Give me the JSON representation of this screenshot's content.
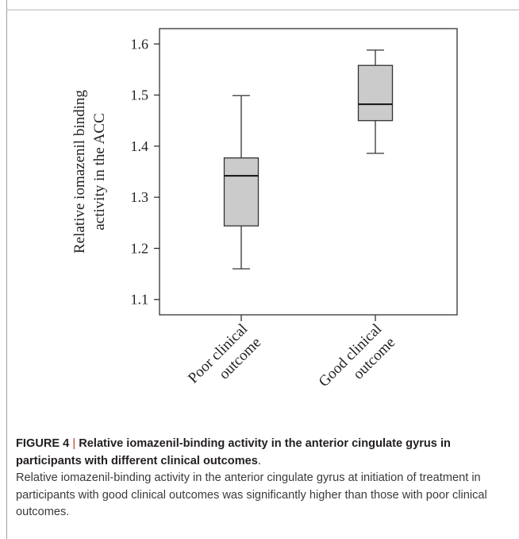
{
  "chart_data": {
    "type": "box",
    "ylabel_line1": "Relative iomazenil binding",
    "ylabel_line2": "activity in the ACC",
    "ylim": [
      1.07,
      1.63
    ],
    "yticks": [
      "1.1",
      "1.2",
      "1.3",
      "1.4",
      "1.5",
      "1.6"
    ],
    "ytick_values": [
      1.1,
      1.2,
      1.3,
      1.4,
      1.5,
      1.6
    ],
    "groups": [
      {
        "label_line1": "Poor clinical",
        "label_line2": "outcome",
        "min": 1.16,
        "q1": 1.244,
        "median": 1.342,
        "q3": 1.377,
        "max": 1.499
      },
      {
        "label_line1": "Good clinical",
        "label_line2": "outcome",
        "min": 1.386,
        "q1": 1.45,
        "median": 1.482,
        "q3": 1.558,
        "max": 1.588
      }
    ],
    "box_fill": "#cbcbcb"
  },
  "caption": {
    "figure_label": "FIGURE 4",
    "separator": "|",
    "title": "Relative iomazenil-binding activity in the anterior cingulate gyrus in participants with different clinical outcomes",
    "title_end": ".",
    "body": "Relative iomazenil-binding activity in the anterior cingulate gyrus at initiation of treatment in participants with good clinical outcomes was significantly higher than those with poor clinical outcomes."
  }
}
